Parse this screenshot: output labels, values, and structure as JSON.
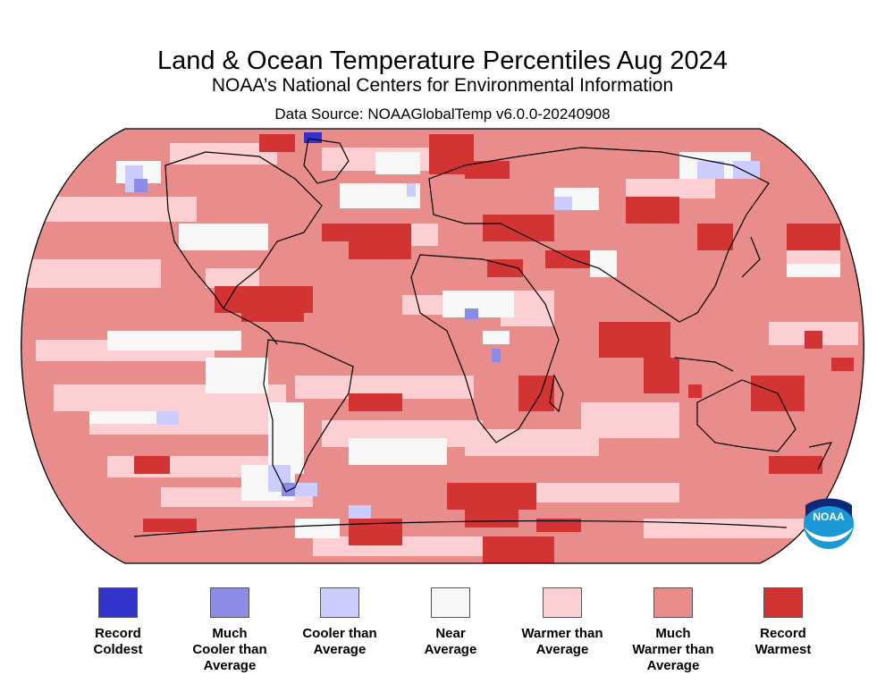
{
  "title": "Land & Ocean Temperature Percentiles Aug 2024",
  "subtitle": "NOAA’s National Centers for Environmental Information",
  "data_source": "Data Source: NOAAGlobalTemp v6.0.0-20240908",
  "logo": {
    "text": "NOAA",
    "icon": "noaa-logo"
  },
  "colors": {
    "record_coldest": "#3333cc",
    "much_cooler": "#8c8ce6",
    "cooler": "#ccccff",
    "near": "#f7f7f7",
    "warmer": "#fccfd2",
    "much_warmer": "#e88c8c",
    "record_warmest": "#d23333",
    "coast": "#000000"
  },
  "legend": [
    {
      "label": "Record\nColdest",
      "color": "#3333cc"
    },
    {
      "label": "Much\nCooler than\nAverage",
      "color": "#8c8ce6"
    },
    {
      "label": "Cooler than\nAverage",
      "color": "#ccccff"
    },
    {
      "label": "Near\nAverage",
      "color": "#f7f7f7"
    },
    {
      "label": "Warmer than\nAverage",
      "color": "#fccfd2"
    },
    {
      "label": "Much\nWarmer than\nAverage",
      "color": "#e88c8c"
    },
    {
      "label": "Record\nWarmest",
      "color": "#d23333"
    }
  ]
}
